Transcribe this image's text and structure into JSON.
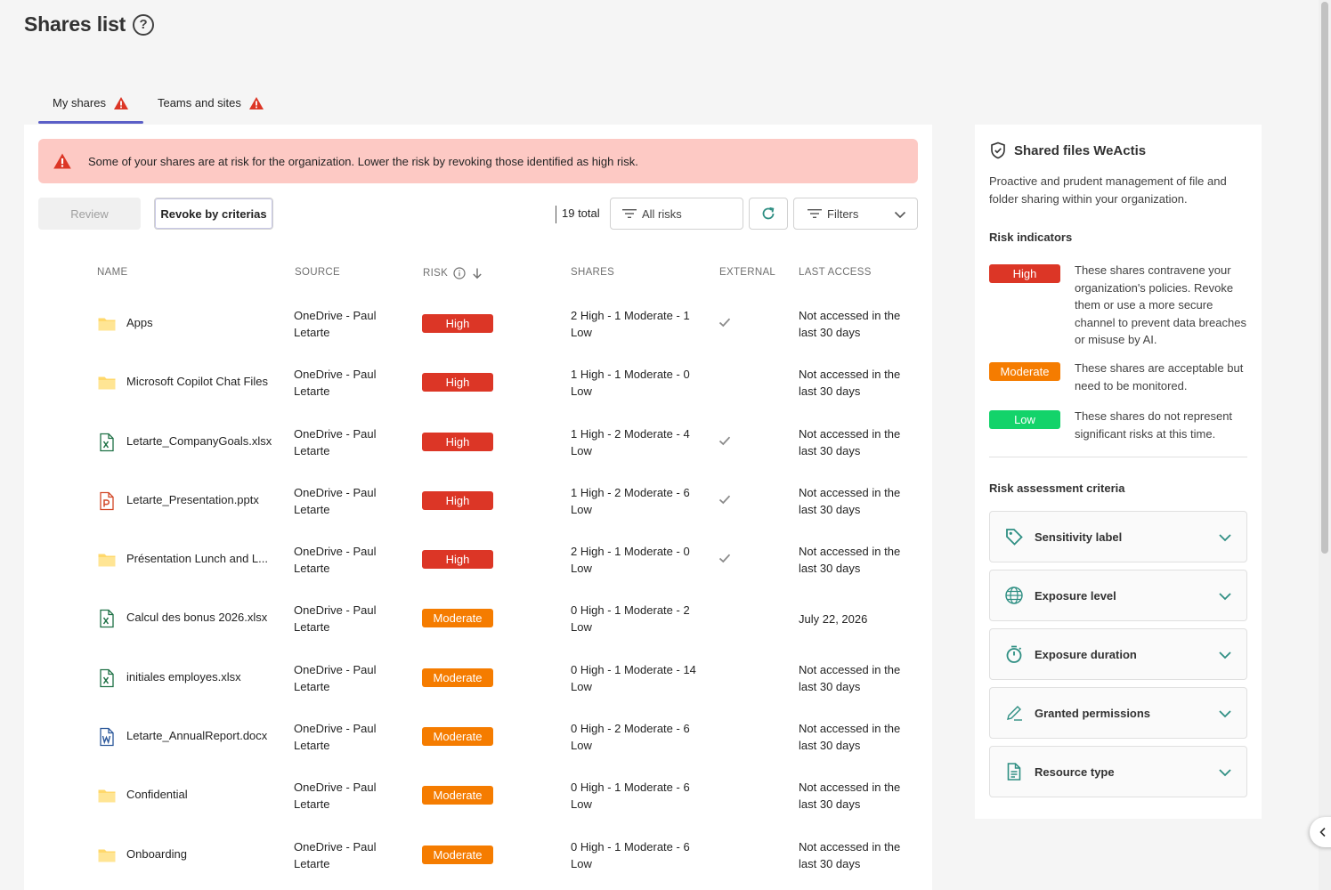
{
  "page": {
    "title": "Shares list"
  },
  "tabs": [
    {
      "label": "My shares",
      "active": true,
      "warning": true
    },
    {
      "label": "Teams and sites",
      "active": false,
      "warning": true
    }
  ],
  "alert": {
    "text": "Some of your shares are at risk for the organization. Lower the risk by revoking those identified as high risk."
  },
  "toolbar": {
    "review_label": "Review",
    "revoke_label": "Revoke by criterias",
    "total": "19 total",
    "risk_filter": "All risks",
    "filters_label": "Filters"
  },
  "columns": {
    "name": "NAME",
    "source": "SOURCE",
    "risk": "RISK",
    "shares": "SHARES",
    "external": "EXTERNAL",
    "last_access": "LAST ACCESS"
  },
  "rows": [
    {
      "icon": "folder-icon",
      "name": "Apps",
      "source": "OneDrive - Paul Letarte",
      "risk": "High",
      "shares": "2 High - 1 Moderate - 1 Low",
      "external": true,
      "last_access": "Not accessed in the last 30 days"
    },
    {
      "icon": "folder-icon",
      "name": "Microsoft Copilot Chat Files",
      "source": "OneDrive - Paul Letarte",
      "risk": "High",
      "shares": "1 High - 1 Moderate - 0 Low",
      "external": false,
      "last_access": "Not accessed in the last 30 days"
    },
    {
      "icon": "excel-file-icon",
      "name": "Letarte_CompanyGoals.xlsx",
      "source": "OneDrive - Paul Letarte",
      "risk": "High",
      "shares": "1 High - 2 Moderate - 4 Low",
      "external": true,
      "last_access": "Not accessed in the last 30 days"
    },
    {
      "icon": "powerpoint-file-icon",
      "name": "Letarte_Presentation.pptx",
      "source": "OneDrive - Paul Letarte",
      "risk": "High",
      "shares": "1 High - 2 Moderate - 6 Low",
      "external": true,
      "last_access": "Not accessed in the last 30 days"
    },
    {
      "icon": "folder-icon",
      "name": "Présentation Lunch and L...",
      "source": "OneDrive - Paul Letarte",
      "risk": "High",
      "shares": "2 High - 1 Moderate - 0 Low",
      "external": true,
      "last_access": "Not accessed in the last 30 days"
    },
    {
      "icon": "excel-file-icon",
      "name": "Calcul des bonus 2026.xlsx",
      "source": "OneDrive - Paul Letarte",
      "risk": "Moderate",
      "shares": "0 High - 1 Moderate - 2 Low",
      "external": false,
      "last_access": "July 22, 2026"
    },
    {
      "icon": "excel-file-icon",
      "name": "initiales employes.xlsx",
      "source": "OneDrive - Paul Letarte",
      "risk": "Moderate",
      "shares": "0 High - 1 Moderate - 14 Low",
      "external": false,
      "last_access": "Not accessed in the last 30 days"
    },
    {
      "icon": "word-file-icon",
      "name": "Letarte_AnnualReport.docx",
      "source": "OneDrive - Paul Letarte",
      "risk": "Moderate",
      "shares": "0 High - 2 Moderate - 6 Low",
      "external": false,
      "last_access": "Not accessed in the last 30 days"
    },
    {
      "icon": "folder-icon",
      "name": "Confidential",
      "source": "OneDrive - Paul Letarte",
      "risk": "Moderate",
      "shares": "0 High - 1 Moderate - 6 Low",
      "external": false,
      "last_access": "Not accessed in the last 30 days"
    },
    {
      "icon": "folder-icon",
      "name": "Onboarding",
      "source": "OneDrive - Paul Letarte",
      "risk": "Moderate",
      "shares": "0 High - 1 Moderate - 6 Low",
      "external": false,
      "last_access": "Not accessed in the last 30 days"
    }
  ],
  "side_panel": {
    "title": "Shared files WeActis",
    "description": "Proactive and prudent management of file and folder sharing within your organization.",
    "indicators_heading": "Risk indicators",
    "indicators": [
      {
        "label": "High",
        "level": "high",
        "text": "These shares contravene your organization's policies. Revoke them or use a more secure channel to prevent data breaches or misuse by AI."
      },
      {
        "label": "Moderate",
        "level": "moderate",
        "text": "These shares are acceptable but need to be monitored."
      },
      {
        "label": "Low",
        "level": "low",
        "text": "These shares do not represent significant risks at this time."
      }
    ],
    "criteria_heading": "Risk assessment criteria",
    "criteria": [
      {
        "label": "Sensitivity label",
        "icon": "tag-icon"
      },
      {
        "label": "Exposure level",
        "icon": "globe-icon"
      },
      {
        "label": "Exposure duration",
        "icon": "timer-icon"
      },
      {
        "label": "Granted permissions",
        "icon": "pen-icon"
      },
      {
        "label": "Resource type",
        "icon": "document-icon"
      }
    ]
  },
  "colors": {
    "high": "#dc3626",
    "moderate": "#f57c00",
    "low": "#13d36a",
    "accent": "#5b5fc7",
    "brand_green": "#2f8f83"
  }
}
